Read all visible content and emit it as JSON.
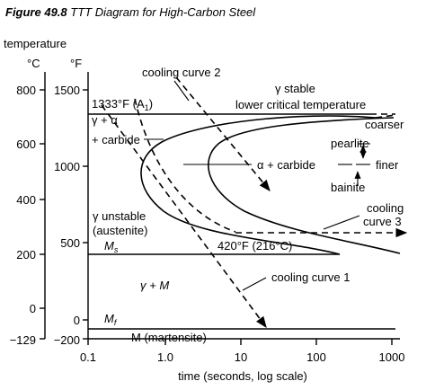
{
  "figure": {
    "number": "Figure 49.8",
    "title": "TTT Diagram for High-Carbon Steel"
  },
  "axes": {
    "temperature_label": "temperature",
    "celsius_unit": "°C",
    "fahrenheit_unit": "°F",
    "celsius_ticks": [
      "800",
      "600",
      "400",
      "200",
      "0",
      "−129"
    ],
    "fahrenheit_ticks": [
      "1500",
      "1000",
      "500",
      "0",
      "−200"
    ],
    "time_ticks": [
      "0.1",
      "1.0",
      "10",
      "100",
      "1000"
    ],
    "time_label": "time (seconds, log scale)"
  },
  "labels": {
    "a1_line": "1333°F (A",
    "a1_sub": "1",
    "a1_close": ")",
    "gamma_stable": "γ stable",
    "lower_critical": "lower critical temperature",
    "gamma_alpha": "γ + α",
    "plus_carbide": "+ carbide",
    "alpha_carbide": "α + carbide",
    "coarser": "coarser",
    "pearlite": "pearlite",
    "finer": "finer",
    "bainite": "bainite",
    "gamma_unstable": "γ unstable",
    "austenite": "(austenite)",
    "ms": "M",
    "ms_sub": "s",
    "ms_line": "420°F (216°C)",
    "gamma_m": "γ + M",
    "mf": "M",
    "mf_sub": "f",
    "martensite": "M (martensite)",
    "cooling_curve_1": "cooling curve 1",
    "cooling_curve_2": "cooling curve 2",
    "cooling_3_line1": "cooling",
    "cooling_3_line2": "curve 3"
  }
}
